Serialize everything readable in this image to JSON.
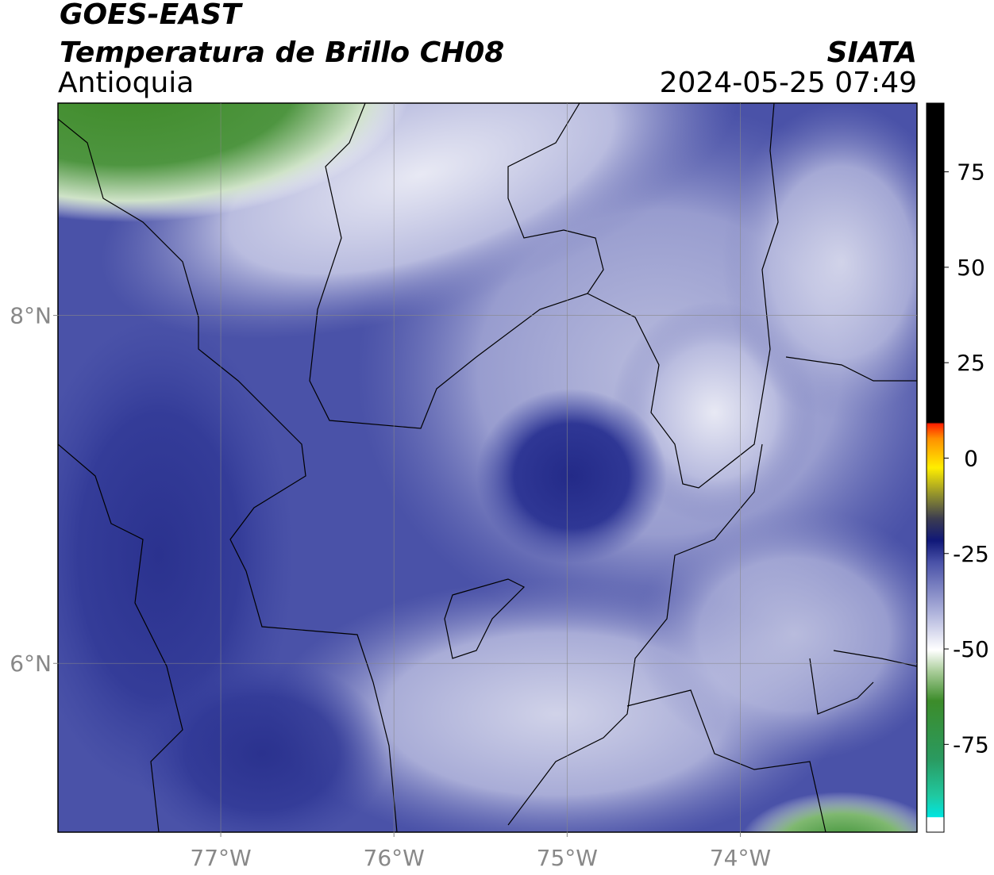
{
  "header": {
    "title": "GOES-EAST",
    "product": "Temperatura de Brillo CH08",
    "region": "Antioquia",
    "source": "SIATA",
    "datetime": "2024-05-25 07:49"
  },
  "map": {
    "xlim": [
      -77.94,
      -72.98
    ],
    "ylim": [
      5.03,
      9.22
    ],
    "xticks": [
      {
        "value": -77,
        "label": "77°W"
      },
      {
        "value": -76,
        "label": "76°W"
      },
      {
        "value": -75,
        "label": "75°W"
      },
      {
        "value": -74,
        "label": "74°W"
      }
    ],
    "yticks": [
      {
        "value": 8,
        "label": "8°N"
      },
      {
        "value": 6,
        "label": "6°N"
      }
    ],
    "grid": true
  },
  "colorbar": {
    "clim": [
      -98,
      93
    ],
    "ticks": [
      75,
      50,
      25,
      0,
      -25,
      -50,
      -75
    ]
  }
}
